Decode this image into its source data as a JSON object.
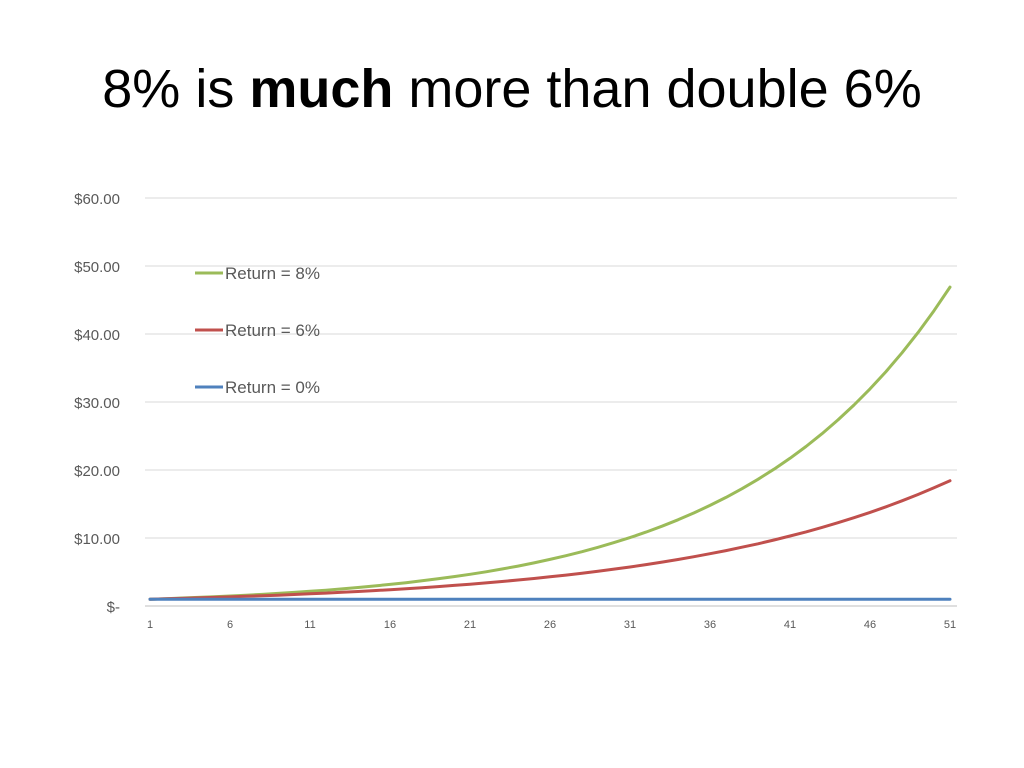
{
  "slide": {
    "title_part1": "8% is ",
    "title_bold": "much",
    "title_part2": " more than double 6%"
  },
  "chart_data": {
    "type": "line",
    "title": "",
    "xlabel": "",
    "ylabel": "",
    "x": [
      1,
      2,
      3,
      4,
      5,
      6,
      7,
      8,
      9,
      10,
      11,
      12,
      13,
      14,
      15,
      16,
      17,
      18,
      19,
      20,
      21,
      22,
      23,
      24,
      25,
      26,
      27,
      28,
      29,
      30,
      31,
      32,
      33,
      34,
      35,
      36,
      37,
      38,
      39,
      40,
      41,
      42,
      43,
      44,
      45,
      46,
      47,
      48,
      49,
      50,
      51
    ],
    "x_tick_labels": [
      "1",
      "6",
      "11",
      "16",
      "21",
      "26",
      "31",
      "36",
      "41",
      "46",
      "51"
    ],
    "y_tick_labels": [
      "$-",
      "$10.00",
      "$20.00",
      "$30.00",
      "$40.00",
      "$50.00",
      "$60.00"
    ],
    "ylim": [
      0,
      60
    ],
    "grid": true,
    "legend_position": "top-left",
    "series": [
      {
        "name": "Return = 8%",
        "color": "#9bbb59",
        "values": [
          1.0,
          1.08,
          1.17,
          1.26,
          1.36,
          1.47,
          1.59,
          1.71,
          1.85,
          2.0,
          2.16,
          2.33,
          2.52,
          2.72,
          2.94,
          3.17,
          3.43,
          3.7,
          4.0,
          4.32,
          4.66,
          5.03,
          5.44,
          5.87,
          6.34,
          6.85,
          7.4,
          7.99,
          8.63,
          9.32,
          10.06,
          10.87,
          11.74,
          12.68,
          13.69,
          14.79,
          15.97,
          17.25,
          18.63,
          20.12,
          21.72,
          23.46,
          25.34,
          27.37,
          29.56,
          31.92,
          34.47,
          37.23,
          40.21,
          43.43,
          46.9
        ]
      },
      {
        "name": "Return = 6%",
        "color": "#c0504d",
        "values": [
          1.0,
          1.06,
          1.12,
          1.19,
          1.26,
          1.34,
          1.42,
          1.5,
          1.59,
          1.69,
          1.79,
          1.9,
          2.01,
          2.13,
          2.26,
          2.4,
          2.54,
          2.69,
          2.85,
          3.03,
          3.21,
          3.4,
          3.6,
          3.82,
          4.05,
          4.29,
          4.55,
          4.82,
          5.11,
          5.42,
          5.74,
          6.09,
          6.45,
          6.84,
          7.25,
          7.69,
          8.15,
          8.64,
          9.15,
          9.7,
          10.29,
          10.9,
          11.56,
          12.25,
          12.99,
          13.76,
          14.59,
          15.47,
          16.39,
          17.38,
          18.42
        ]
      },
      {
        "name": "Return = 0%",
        "color": "#4f81bd",
        "values": [
          1,
          1,
          1,
          1,
          1,
          1,
          1,
          1,
          1,
          1,
          1,
          1,
          1,
          1,
          1,
          1,
          1,
          1,
          1,
          1,
          1,
          1,
          1,
          1,
          1,
          1,
          1,
          1,
          1,
          1,
          1,
          1,
          1,
          1,
          1,
          1,
          1,
          1,
          1,
          1,
          1,
          1,
          1,
          1,
          1,
          1,
          1,
          1,
          1,
          1,
          1
        ]
      }
    ]
  }
}
